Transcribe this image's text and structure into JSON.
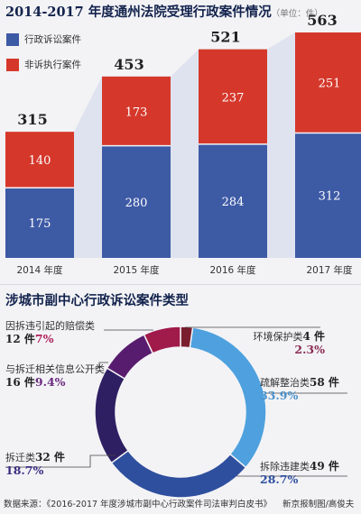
{
  "chart_data": [
    {
      "type": "bar",
      "stacked": true,
      "title": "2014-2017 年度通州法院受理行政案件情况",
      "unit": "（单位：件）",
      "categories": [
        "2014 年度",
        "2015 年度",
        "2016 年度",
        "2017 年度"
      ],
      "series": [
        {
          "name": "行政诉讼案件",
          "color": "#3d5aa5",
          "values": [
            175,
            280,
            284,
            312
          ]
        },
        {
          "name": "非诉执行案件",
          "color": "#d5382b",
          "values": [
            140,
            173,
            237,
            251
          ]
        }
      ],
      "totals": [
        315,
        453,
        521,
        563
      ],
      "totals_label": [
        "315",
        "453",
        "521",
        "563"
      ],
      "grid": false,
      "legend": "top-left"
    },
    {
      "type": "pie",
      "donut": true,
      "title": "涉城市副中心行政诉讼案件类型",
      "slices": [
        {
          "name": "环境保护类",
          "count": 4,
          "count_label": "4 件",
          "percent": 2.3,
          "percent_label": "2.3%",
          "color": "#7a1d2e",
          "pct_color": "#8a2a52"
        },
        {
          "name": "疏解整治类",
          "count": 58,
          "count_label": "58 件",
          "percent": 33.9,
          "percent_label": "33.9%",
          "color": "#4ea1de",
          "pct_color": "#4a90c9"
        },
        {
          "name": "拆除违建类",
          "count": 49,
          "count_label": "49 件",
          "percent": 28.7,
          "percent_label": "28.7%",
          "color": "#2e4f9e",
          "pct_color": "#2e4f9e"
        },
        {
          "name": "拆迁类",
          "count": 32,
          "count_label": "32 件",
          "percent": 18.7,
          "percent_label": "18.7%",
          "color": "#2e1f63",
          "pct_color": "#3a2c80"
        },
        {
          "name": "与拆迁相关信息公开类",
          "count": 16,
          "count_label": "16 件",
          "percent": 9.4,
          "percent_label": "9.4%",
          "color": "#581c6e",
          "pct_color": "#6b2a80"
        },
        {
          "name": "因拆违引起的赔偿类",
          "count": 12,
          "count_label": "12 件",
          "percent": 7.0,
          "percent_label": "7%",
          "color": "#a01a4a",
          "pct_color": "#b0205a"
        }
      ]
    }
  ],
  "footer": {
    "source": "数据来源：《2016-2017 年度涉城市副中心行政案件司法审判白皮书》",
    "credit": "新京报制图/高俊夫"
  }
}
